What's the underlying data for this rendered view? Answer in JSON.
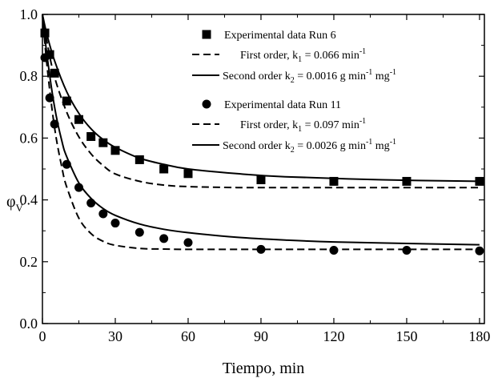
{
  "chart_data": {
    "type": "scatter",
    "xlabel": "Tiempo, min",
    "ylabel": "φ",
    "ylabel_subscript": "V",
    "xlim": [
      0,
      182
    ],
    "ylim": [
      0,
      1.0
    ],
    "xticks": [
      0,
      30,
      60,
      90,
      120,
      150,
      180
    ],
    "yticks": [
      0.0,
      0.2,
      0.4,
      0.6,
      0.8,
      1.0
    ],
    "xtick_labels": [
      "0",
      "30",
      "60",
      "90",
      "120",
      "150",
      "180"
    ],
    "ytick_labels": [
      "0.0",
      "0.2",
      "0.4",
      "0.6",
      "0.8",
      "1.0"
    ],
    "grid": false,
    "legend_position": "top-right",
    "series": [
      {
        "name": "Experimental data Run 6",
        "kind": "points",
        "marker": "square",
        "x": [
          1,
          3,
          5,
          10,
          15,
          20,
          25,
          30,
          40,
          50,
          60,
          90,
          120,
          150,
          180
        ],
        "y": [
          0.94,
          0.87,
          0.81,
          0.72,
          0.66,
          0.605,
          0.585,
          0.56,
          0.53,
          0.5,
          0.485,
          0.465,
          0.46,
          0.46,
          0.46
        ]
      },
      {
        "name": "First order, k₁ = 0.066 min⁻¹",
        "kind": "line",
        "dash": "dashed",
        "x": [
          0,
          2,
          5,
          10,
          15,
          20,
          25,
          30,
          40,
          50,
          60,
          80,
          100,
          140,
          180
        ],
        "y": [
          1.0,
          0.906,
          0.797,
          0.684,
          0.604,
          0.549,
          0.511,
          0.484,
          0.46,
          0.448,
          0.443,
          0.44,
          0.44,
          0.44,
          0.44
        ]
      },
      {
        "name": "Second order k₂ = 0.0016 g min⁻¹ mg⁻¹",
        "kind": "line",
        "dash": "solid",
        "x": [
          0,
          2,
          5,
          10,
          15,
          20,
          25,
          30,
          40,
          50,
          60,
          80,
          100,
          140,
          180
        ],
        "y": [
          1.0,
          0.93,
          0.85,
          0.75,
          0.68,
          0.63,
          0.595,
          0.57,
          0.535,
          0.515,
          0.5,
          0.485,
          0.475,
          0.465,
          0.46
        ]
      },
      {
        "name": "Experimental data Run 11",
        "kind": "points",
        "marker": "circle",
        "x": [
          1,
          3,
          5,
          10,
          15,
          20,
          25,
          30,
          40,
          50,
          60,
          90,
          120,
          150,
          180
        ],
        "y": [
          0.86,
          0.73,
          0.645,
          0.515,
          0.44,
          0.39,
          0.355,
          0.325,
          0.295,
          0.275,
          0.262,
          0.24,
          0.237,
          0.237,
          0.235
        ]
      },
      {
        "name": "First order, k₁ = 0.097 min⁻¹",
        "kind": "line",
        "dash": "dashed",
        "x": [
          0,
          2,
          5,
          8,
          10,
          15,
          20,
          25,
          30,
          40,
          50,
          60,
          80,
          120,
          180
        ],
        "y": [
          1.0,
          0.825,
          0.633,
          0.505,
          0.442,
          0.341,
          0.291,
          0.266,
          0.253,
          0.243,
          0.241,
          0.24,
          0.24,
          0.24,
          0.24
        ]
      },
      {
        "name": "Second order k₂ = 0.0026 g min⁻¹ mg⁻¹",
        "kind": "line",
        "dash": "solid",
        "x": [
          0,
          2,
          5,
          8,
          10,
          15,
          20,
          25,
          30,
          40,
          50,
          60,
          80,
          100,
          120,
          150,
          180
        ],
        "y": [
          1.0,
          0.86,
          0.7,
          0.59,
          0.54,
          0.455,
          0.405,
          0.372,
          0.35,
          0.322,
          0.305,
          0.294,
          0.279,
          0.27,
          0.264,
          0.259,
          0.255
        ]
      }
    ],
    "legend": [
      {
        "marker": "square",
        "text": "Experimental data Run 6"
      },
      {
        "marker": "dashed",
        "text": "First order, k",
        "sub": "1",
        "rest": " = 0.066 min",
        "sup": "-1"
      },
      {
        "marker": "solid",
        "text": "Second order k",
        "sub": "2",
        "rest": " = 0.0016 g min",
        "sup": "-1",
        "rest2": " mg",
        "sup2": "-1"
      },
      {
        "marker": "circle",
        "text": "Experimental data Run 11"
      },
      {
        "marker": "dashed",
        "text": "First order, k",
        "sub": "1",
        "rest": " = 0.097 min",
        "sup": "-1"
      },
      {
        "marker": "solid",
        "text": "Second order k",
        "sub": "2",
        "rest": " = 0.0026 g min",
        "sup": "-1",
        "rest2": " mg",
        "sup2": "-1"
      }
    ]
  }
}
